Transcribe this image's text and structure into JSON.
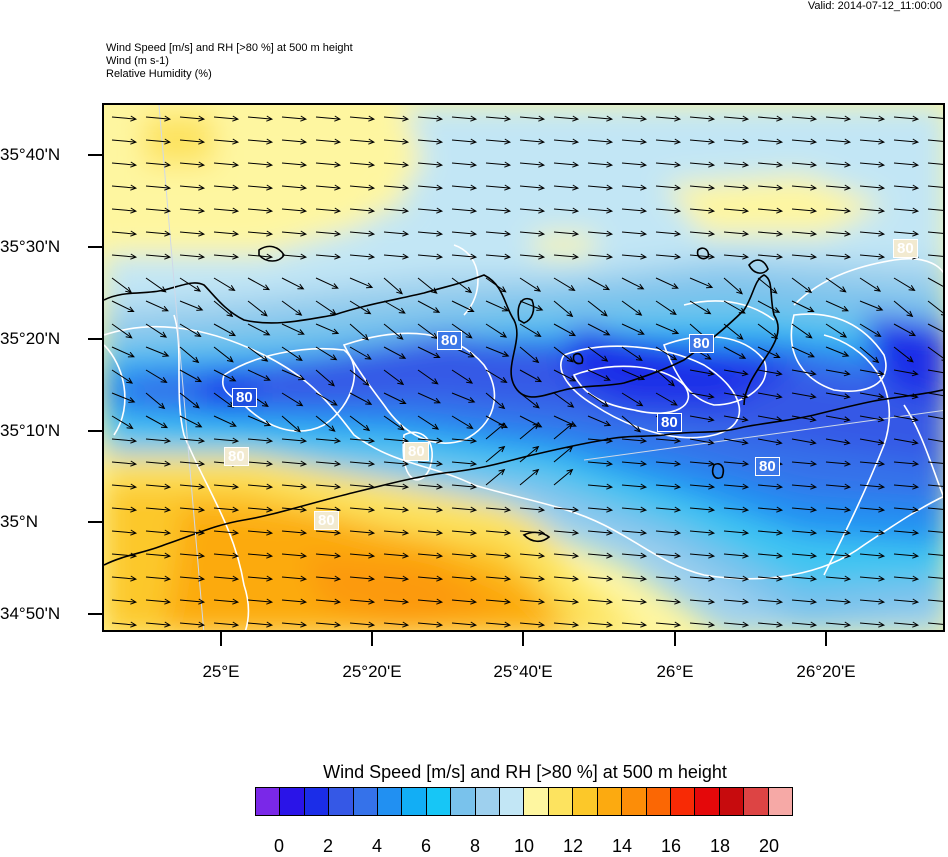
{
  "valid_time": "Valid: 2014-07-12_11:00:00",
  "header_lines": [
    "Wind Speed [m/s] and RH [>80 %] at 500 m height",
    "Wind   (m s-1)",
    "Relative Humidity   (%)"
  ],
  "lat_labels": [
    "35°40'N",
    "35°30'N",
    "35°20'N",
    "35°10'N",
    "35°N",
    "34°50'N"
  ],
  "lon_labels": [
    "25°E",
    "25°20'E",
    "25°40'E",
    "26°E",
    "26°20'E"
  ],
  "contour_labels": [
    "80",
    "80",
    "80",
    "80",
    "80",
    "80",
    "80",
    "80",
    "80"
  ],
  "colorbar": {
    "title": "Wind Speed [m/s] and RH [>80 %] at 500 m height",
    "colors": [
      "#7a28e8",
      "#2a14e8",
      "#1b2de8",
      "#3558e6",
      "#3572ea",
      "#2190f2",
      "#12aef5",
      "#17c6f6",
      "#79c2ec",
      "#9ed0ee",
      "#c2e6f5",
      "#fef6a0",
      "#fde35f",
      "#fcc829",
      "#fcaa10",
      "#fc8d08",
      "#fb6704",
      "#f82a05",
      "#e4080a",
      "#c70b0d",
      "#dd4444",
      "#f6a9a6"
    ],
    "tick_labels": [
      "0",
      "2",
      "4",
      "6",
      "8",
      "10",
      "12",
      "14",
      "16",
      "18",
      "20"
    ]
  },
  "colors": {
    "land_outline": "#000000",
    "contour": "#ffffff",
    "arrow": "#000000"
  }
}
